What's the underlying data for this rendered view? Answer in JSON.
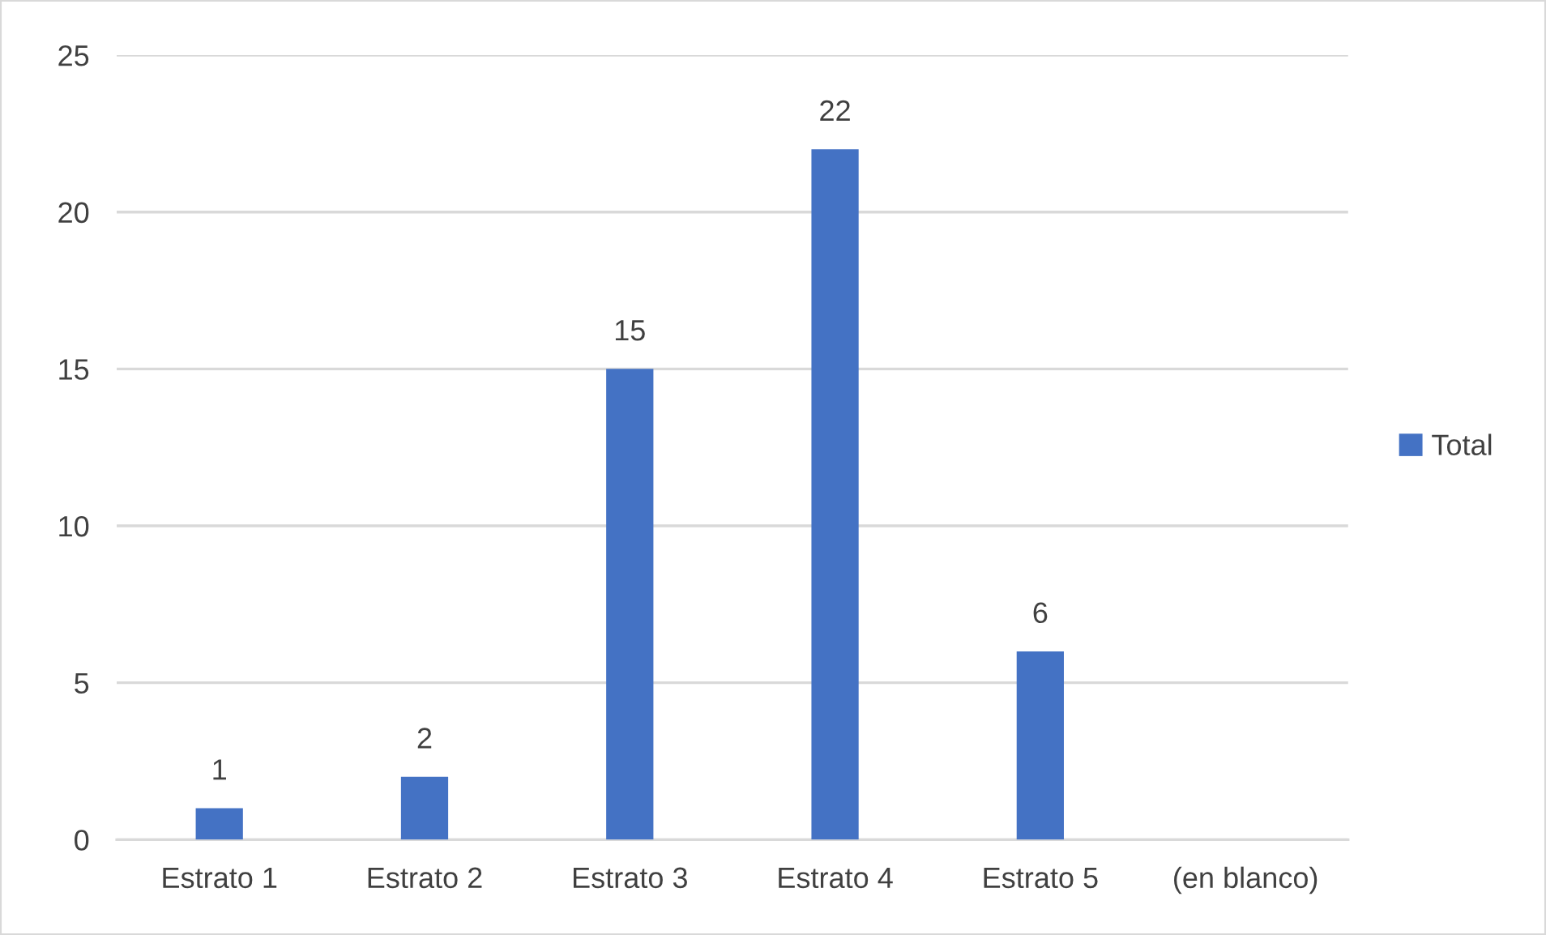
{
  "chart_data": {
    "type": "bar",
    "categories": [
      "Estrato 1",
      "Estrato 2",
      "Estrato 3",
      "Estrato 4",
      "Estrato 5",
      "(en blanco)"
    ],
    "series": [
      {
        "name": "Total",
        "color": "#4472c4",
        "values": [
          1,
          2,
          15,
          22,
          6,
          null
        ]
      }
    ],
    "ylim": [
      0,
      25
    ],
    "yticks": [
      0,
      5,
      10,
      15,
      20,
      25
    ],
    "grid": "y",
    "legend": "right",
    "data_labels": true
  }
}
